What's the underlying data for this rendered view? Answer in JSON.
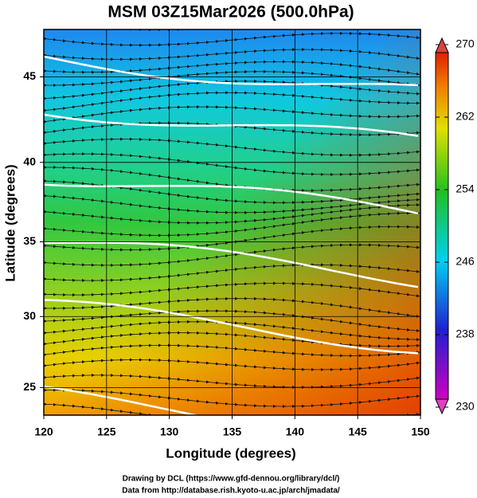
{
  "chart_data": {
    "type": "streamline-map",
    "title": "MSM 03Z15Mar2026 (500.0hPa)",
    "xlabel": "Longitude (degrees)",
    "ylabel": "Latitude  (degrees)",
    "xlim": [
      120,
      150
    ],
    "xticks": [
      120,
      125,
      130,
      135,
      140,
      145,
      150
    ],
    "ylim": [
      23.0,
      47.6
    ],
    "yticks": [
      25,
      30,
      35,
      40,
      45
    ],
    "projection": "mercator",
    "grid": true,
    "colorlim": [
      230,
      270
    ],
    "colorticks": [
      230,
      238,
      246,
      254,
      262,
      270
    ],
    "footer": [
      "Drawing by DCL (https://www.gfd-dennou.org/library/dcl/)",
      "Data from http://database.rish.kyoto-u.ac.jp/arch/jmadata/"
    ]
  }
}
